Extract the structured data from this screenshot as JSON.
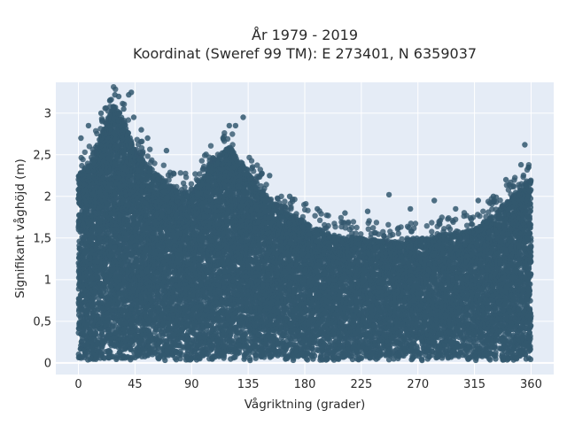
{
  "chart_data": {
    "type": "scatter",
    "title_line1": "År 1979 - 2019",
    "title_line2": "Koordinat (Sweref 99 TM): E 273401, N 6359037",
    "xlabel": "Vågriktning (grader)",
    "ylabel": "Signifikant våghöjd (m)",
    "xlim": [
      -18,
      378
    ],
    "ylim": [
      -0.14,
      3.37
    ],
    "xticks": [
      0,
      45,
      90,
      135,
      180,
      225,
      270,
      315,
      360
    ],
    "xtick_labels": [
      "0",
      "45",
      "90",
      "135",
      "180",
      "225",
      "270",
      "315",
      "360"
    ],
    "yticks": [
      0,
      0.5,
      1,
      1.5,
      2,
      2.5,
      3
    ],
    "ytick_labels": [
      "0",
      "0,5",
      "1",
      "1,5",
      "2",
      "2,5",
      "3"
    ],
    "grid": true,
    "marker_color": "#33586e",
    "plot_background": "#e5ecf6",
    "x_range": [
      0,
      360
    ],
    "upper_envelope": [
      {
        "x": 0,
        "y": 2.25
      },
      {
        "x": 10,
        "y": 2.45
      },
      {
        "x": 20,
        "y": 2.8
      },
      {
        "x": 28,
        "y": 3.1
      },
      {
        "x": 35,
        "y": 2.95
      },
      {
        "x": 45,
        "y": 2.55
      },
      {
        "x": 60,
        "y": 2.3
      },
      {
        "x": 75,
        "y": 2.1
      },
      {
        "x": 90,
        "y": 2.05
      },
      {
        "x": 105,
        "y": 2.4
      },
      {
        "x": 120,
        "y": 2.6
      },
      {
        "x": 135,
        "y": 2.3
      },
      {
        "x": 150,
        "y": 2.0
      },
      {
        "x": 165,
        "y": 1.8
      },
      {
        "x": 180,
        "y": 1.7
      },
      {
        "x": 200,
        "y": 1.55
      },
      {
        "x": 225,
        "y": 1.5
      },
      {
        "x": 250,
        "y": 1.45
      },
      {
        "x": 270,
        "y": 1.5
      },
      {
        "x": 290,
        "y": 1.55
      },
      {
        "x": 315,
        "y": 1.6
      },
      {
        "x": 335,
        "y": 1.85
      },
      {
        "x": 350,
        "y": 2.1
      },
      {
        "x": 360,
        "y": 2.2
      }
    ],
    "outliers": [
      {
        "x": 18,
        "y": 3.0
      },
      {
        "x": 25,
        "y": 3.15
      },
      {
        "x": 29,
        "y": 3.22
      },
      {
        "x": 32,
        "y": 3.2
      },
      {
        "x": 40,
        "y": 3.22
      },
      {
        "x": 42,
        "y": 3.25
      },
      {
        "x": 36,
        "y": 3.05
      },
      {
        "x": 44,
        "y": 2.95
      },
      {
        "x": 50,
        "y": 2.8
      },
      {
        "x": 55,
        "y": 2.7
      },
      {
        "x": 70,
        "y": 2.55
      },
      {
        "x": 8,
        "y": 2.85
      },
      {
        "x": 2,
        "y": 2.7
      },
      {
        "x": 120,
        "y": 2.85
      },
      {
        "x": 125,
        "y": 2.85
      },
      {
        "x": 131,
        "y": 2.95
      },
      {
        "x": 115,
        "y": 2.7
      },
      {
        "x": 152,
        "y": 2.25
      },
      {
        "x": 168,
        "y": 2.0
      },
      {
        "x": 190,
        "y": 1.85
      },
      {
        "x": 212,
        "y": 1.8
      },
      {
        "x": 230,
        "y": 1.82
      },
      {
        "x": 247,
        "y": 2.02
      },
      {
        "x": 264,
        "y": 1.85
      },
      {
        "x": 283,
        "y": 1.95
      },
      {
        "x": 300,
        "y": 1.85
      },
      {
        "x": 318,
        "y": 1.95
      },
      {
        "x": 330,
        "y": 2.0
      },
      {
        "x": 340,
        "y": 2.2
      },
      {
        "x": 352,
        "y": 2.38
      },
      {
        "x": 355,
        "y": 2.62
      },
      {
        "x": 358,
        "y": 2.35
      }
    ]
  }
}
